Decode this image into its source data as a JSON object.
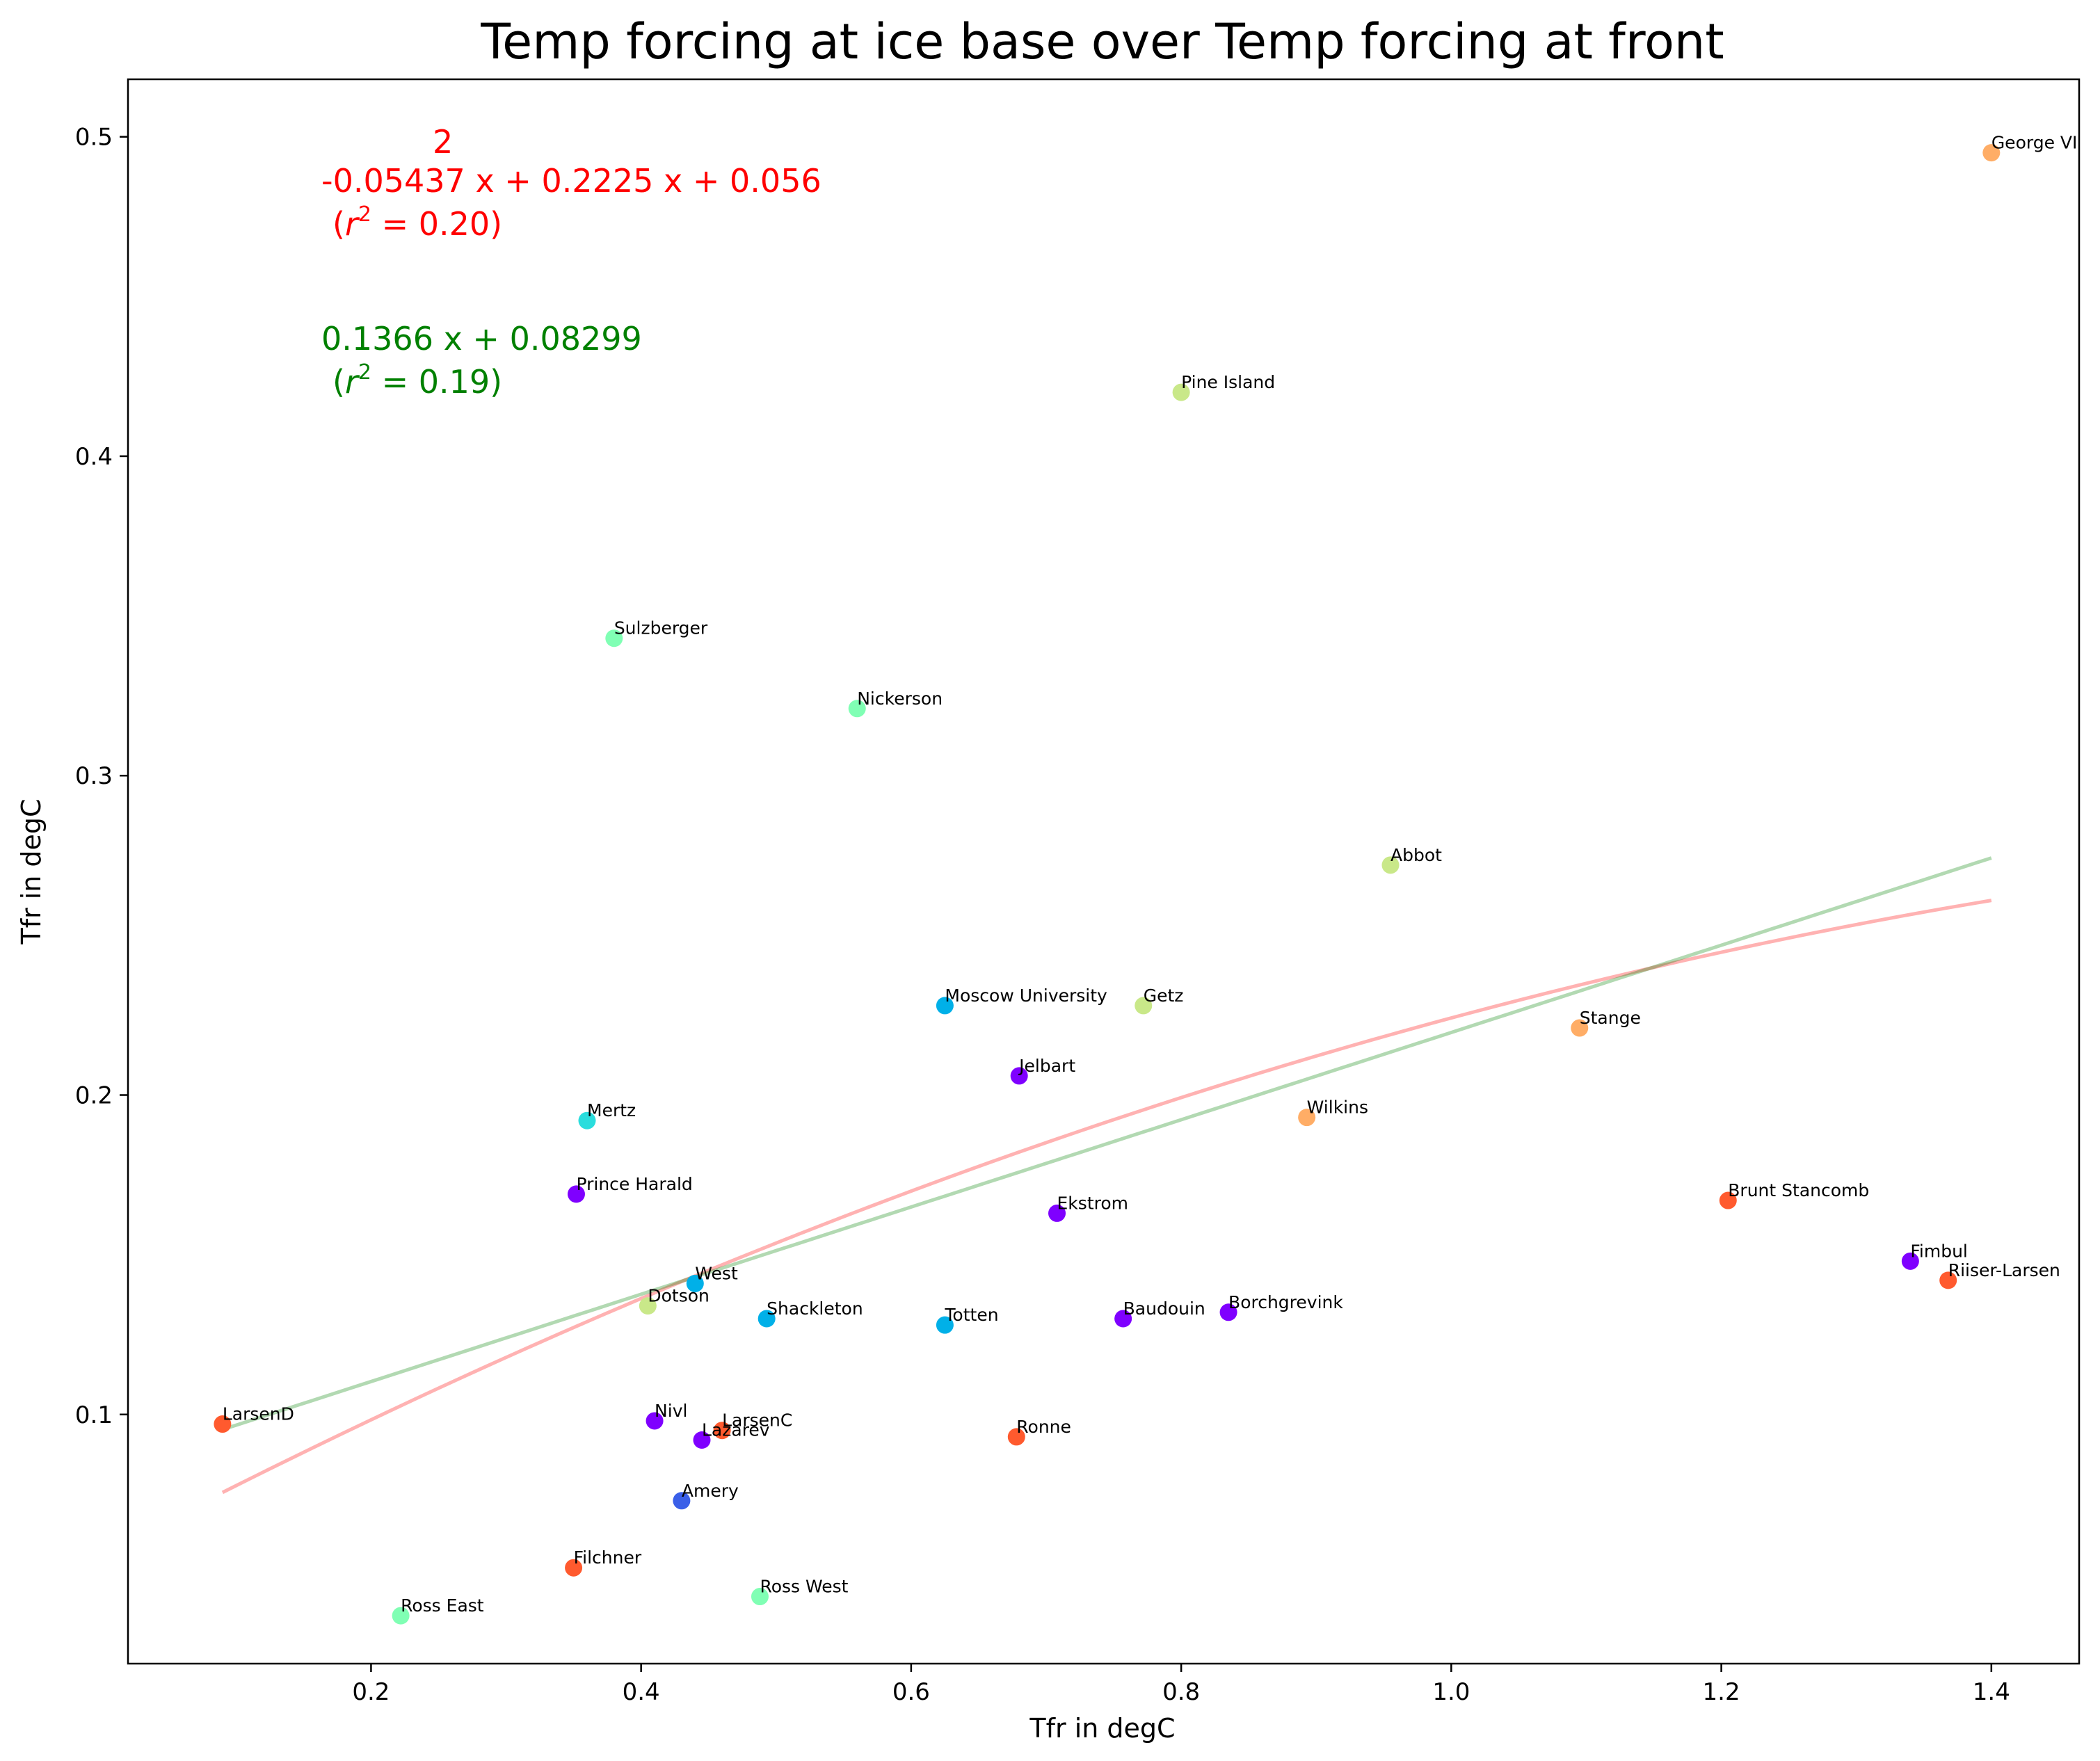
{
  "chart_data": {
    "type": "scatter",
    "title": "Temp forcing at ice base over Temp forcing at front",
    "xlabel": "Tfr in degC",
    "ylabel": "Tfr in degC",
    "xlim": [
      0.02,
      1.465
    ],
    "ylim": [
      0.022,
      0.518
    ],
    "xticks": [
      0.2,
      0.4,
      0.6,
      0.8,
      1.0,
      1.2,
      1.4
    ],
    "yticks": [
      0.1,
      0.2,
      0.3,
      0.4,
      0.5
    ],
    "xtick_labels": [
      "0.2",
      "0.4",
      "0.6",
      "0.8",
      "1.0",
      "1.2",
      "1.4"
    ],
    "ytick_labels": [
      "0.1",
      "0.2",
      "0.3",
      "0.4",
      "0.5"
    ],
    "grid": false,
    "points": [
      {
        "label": "George VI",
        "x": 1.4,
        "y": 0.495,
        "color": "#ffad66"
      },
      {
        "label": "Pine Island",
        "x": 0.8,
        "y": 0.42,
        "color": "#c9e889"
      },
      {
        "label": "Sulzberger",
        "x": 0.38,
        "y": 0.343,
        "color": "#80ffb4"
      },
      {
        "label": "Nickerson",
        "x": 0.56,
        "y": 0.321,
        "color": "#80ffb4"
      },
      {
        "label": "Abbot",
        "x": 0.955,
        "y": 0.272,
        "color": "#c9e889"
      },
      {
        "label": "Moscow University",
        "x": 0.625,
        "y": 0.228,
        "color": "#00b0e8"
      },
      {
        "label": "Getz",
        "x": 0.772,
        "y": 0.228,
        "color": "#c9e889"
      },
      {
        "label": "Stange",
        "x": 1.095,
        "y": 0.221,
        "color": "#ffad66"
      },
      {
        "label": "Jelbart",
        "x": 0.68,
        "y": 0.206,
        "color": "#7f00ff"
      },
      {
        "label": "Wilkins",
        "x": 0.893,
        "y": 0.193,
        "color": "#ffad66"
      },
      {
        "label": "Mertz",
        "x": 0.36,
        "y": 0.192,
        "color": "#2adddd"
      },
      {
        "label": "Prince Harald",
        "x": 0.352,
        "y": 0.169,
        "color": "#7f00ff"
      },
      {
        "label": "Brunt Stancomb",
        "x": 1.205,
        "y": 0.167,
        "color": "#ff5a2e"
      },
      {
        "label": "Ekstrom",
        "x": 0.708,
        "y": 0.163,
        "color": "#7f00ff"
      },
      {
        "label": "Fimbul",
        "x": 1.34,
        "y": 0.148,
        "color": "#7f00ff"
      },
      {
        "label": "Riiser-Larsen",
        "x": 1.368,
        "y": 0.142,
        "color": "#ff5a2e"
      },
      {
        "label": "West",
        "x": 0.44,
        "y": 0.141,
        "color": "#00b0e8"
      },
      {
        "label": "Dotson",
        "x": 0.405,
        "y": 0.134,
        "color": "#c9e889"
      },
      {
        "label": "Borchgrevink",
        "x": 0.835,
        "y": 0.132,
        "color": "#7f00ff"
      },
      {
        "label": "Shackleton",
        "x": 0.493,
        "y": 0.13,
        "color": "#00b0e8"
      },
      {
        "label": "Baudouin",
        "x": 0.757,
        "y": 0.13,
        "color": "#7f00ff"
      },
      {
        "label": "Totten",
        "x": 0.625,
        "y": 0.128,
        "color": "#00b0e8"
      },
      {
        "label": "LarsenD",
        "x": 0.09,
        "y": 0.097,
        "color": "#ff5a2e"
      },
      {
        "label": "Nivl",
        "x": 0.41,
        "y": 0.098,
        "color": "#7f00ff"
      },
      {
        "label": "LarsenC",
        "x": 0.46,
        "y": 0.095,
        "color": "#ff5a2e"
      },
      {
        "label": "Lazarev",
        "x": 0.445,
        "y": 0.092,
        "color": "#7f00ff"
      },
      {
        "label": "Ronne",
        "x": 0.678,
        "y": 0.093,
        "color": "#ff5a2e"
      },
      {
        "label": "Amery",
        "x": 0.43,
        "y": 0.073,
        "color": "#3a5fe8"
      },
      {
        "label": "Filchner",
        "x": 0.35,
        "y": 0.052,
        "color": "#ff5a2e"
      },
      {
        "label": "Ross West",
        "x": 0.488,
        "y": 0.043,
        "color": "#80ffb4"
      },
      {
        "label": "Ross East",
        "x": 0.222,
        "y": 0.037,
        "color": "#80ffb4"
      }
    ],
    "fits": [
      {
        "kind": "quadratic",
        "coefficients": [
          -0.05437,
          0.2225,
          0.056
        ],
        "x_range": [
          0.09,
          1.4
        ],
        "color": "#ff0000"
      },
      {
        "kind": "linear",
        "coefficients": [
          0.1366,
          0.08299
        ],
        "x_range": [
          0.09,
          1.4
        ],
        "color": "#008000"
      }
    ],
    "annotations": {
      "quad_exponent": "2",
      "quad_equation": "-0.05437 x + 0.2225 x + 0.056",
      "quad_r2_prefix": "(",
      "quad_r2_value": " = 0.20)",
      "lin_equation": "0.1366 x + 0.08299",
      "lin_r2_prefix": "(",
      "lin_r2_value": " = 0.19)",
      "r_symbol": "r",
      "r_sup": "2"
    }
  }
}
